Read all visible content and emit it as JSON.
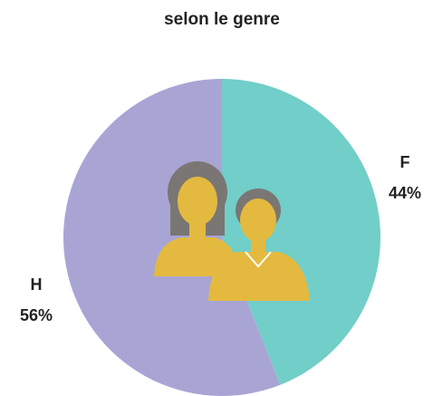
{
  "chart_data": {
    "type": "pie",
    "title": "selon le genre",
    "categories": [
      "F",
      "H"
    ],
    "values": [
      44,
      56
    ],
    "value_labels": [
      "44%",
      "56%"
    ],
    "colors": [
      "#72cec8",
      "#a8a5d5"
    ]
  }
}
